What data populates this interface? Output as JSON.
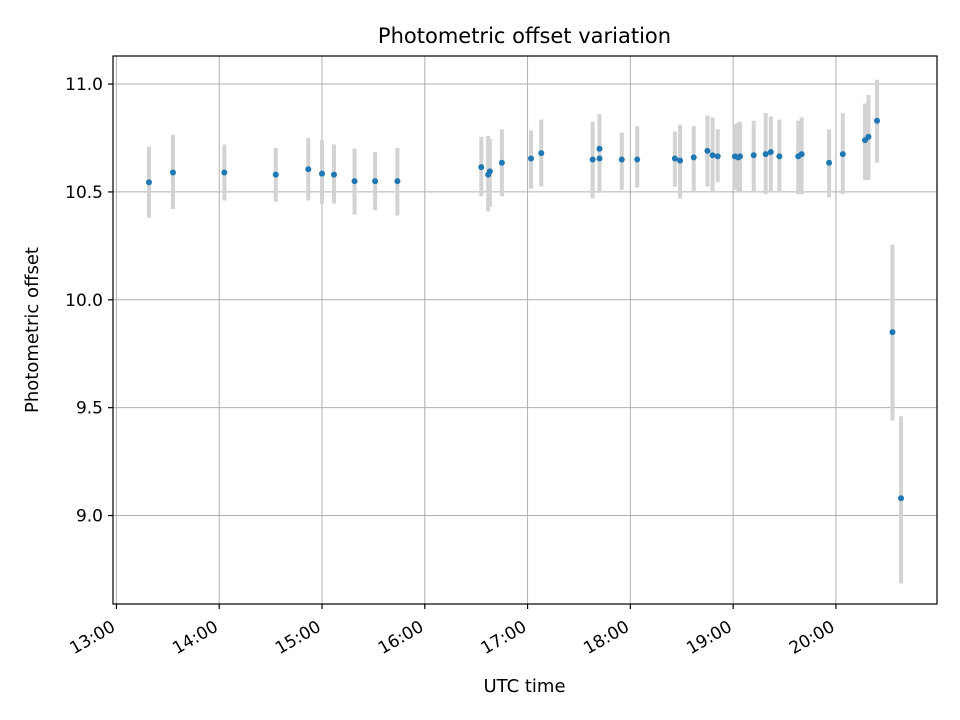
{
  "chart_data": {
    "type": "scatter",
    "title": "Photometric offset variation",
    "xlabel": "UTC time",
    "ylabel": "Photometric offset",
    "x_ticks": [
      "13:00",
      "14:00",
      "15:00",
      "16:00",
      "17:00",
      "18:00",
      "19:00",
      "20:00"
    ],
    "y_ticks": [
      "9.0",
      "9.5",
      "10.0",
      "10.5",
      "11.0"
    ],
    "xlim": [
      "12:58",
      "20:59"
    ],
    "ylim": [
      8.59,
      11.13
    ],
    "grid": true,
    "colors": {
      "point": "#1f77b4",
      "errorbar": "#d3d3d3",
      "grid": "#b0b0b0"
    },
    "points": [
      {
        "x": "13:19",
        "y": 10.545,
        "lo": 10.38,
        "hi": 10.71
      },
      {
        "x": "13:33",
        "y": 10.59,
        "lo": 10.42,
        "hi": 10.765
      },
      {
        "x": "14:03",
        "y": 10.59,
        "lo": 10.46,
        "hi": 10.72
      },
      {
        "x": "14:33",
        "y": 10.58,
        "lo": 10.455,
        "hi": 10.705
      },
      {
        "x": "14:52",
        "y": 10.605,
        "lo": 10.46,
        "hi": 10.75
      },
      {
        "x": "15:00",
        "y": 10.585,
        "lo": 10.445,
        "hi": 10.74
      },
      {
        "x": "15:07",
        "y": 10.58,
        "lo": 10.445,
        "hi": 10.72
      },
      {
        "x": "15:19",
        "y": 10.55,
        "lo": 10.395,
        "hi": 10.7
      },
      {
        "x": "15:31",
        "y": 10.55,
        "lo": 10.415,
        "hi": 10.685
      },
      {
        "x": "15:44",
        "y": 10.55,
        "lo": 10.39,
        "hi": 10.705
      },
      {
        "x": "16:33",
        "y": 10.615,
        "lo": 10.48,
        "hi": 10.755
      },
      {
        "x": "16:37",
        "y": 10.58,
        "lo": 10.41,
        "hi": 10.76
      },
      {
        "x": "16:38",
        "y": 10.595,
        "lo": 10.43,
        "hi": 10.745
      },
      {
        "x": "16:45",
        "y": 10.635,
        "lo": 10.48,
        "hi": 10.79
      },
      {
        "x": "17:02",
        "y": 10.655,
        "lo": 10.515,
        "hi": 10.785
      },
      {
        "x": "17:08",
        "y": 10.68,
        "lo": 10.525,
        "hi": 10.835
      },
      {
        "x": "17:38",
        "y": 10.65,
        "lo": 10.47,
        "hi": 10.825
      },
      {
        "x": "17:42",
        "y": 10.655,
        "lo": 10.495,
        "hi": 10.86
      },
      {
        "x": "17:42",
        "y": 10.7,
        "lo": 10.52,
        "hi": 10.86
      },
      {
        "x": "17:55",
        "y": 10.65,
        "lo": 10.51,
        "hi": 10.775
      },
      {
        "x": "18:04",
        "y": 10.65,
        "lo": 10.52,
        "hi": 10.805
      },
      {
        "x": "18:26",
        "y": 10.655,
        "lo": 10.525,
        "hi": 10.78
      },
      {
        "x": "18:29",
        "y": 10.645,
        "lo": 10.47,
        "hi": 10.81
      },
      {
        "x": "18:37",
        "y": 10.66,
        "lo": 10.505,
        "hi": 10.805
      },
      {
        "x": "18:45",
        "y": 10.69,
        "lo": 10.525,
        "hi": 10.855
      },
      {
        "x": "18:48",
        "y": 10.67,
        "lo": 10.5,
        "hi": 10.845
      },
      {
        "x": "18:51",
        "y": 10.665,
        "lo": 10.545,
        "hi": 10.79
      },
      {
        "x": "19:01",
        "y": 10.665,
        "lo": 10.51,
        "hi": 10.815
      },
      {
        "x": "19:03",
        "y": 10.66,
        "lo": 10.505,
        "hi": 10.82
      },
      {
        "x": "19:04",
        "y": 10.665,
        "lo": 10.5,
        "hi": 10.825
      },
      {
        "x": "19:12",
        "y": 10.67,
        "lo": 10.5,
        "hi": 10.83
      },
      {
        "x": "19:19",
        "y": 10.675,
        "lo": 10.49,
        "hi": 10.865
      },
      {
        "x": "19:22",
        "y": 10.685,
        "lo": 10.5,
        "hi": 10.85
      },
      {
        "x": "19:27",
        "y": 10.665,
        "lo": 10.5,
        "hi": 10.835
      },
      {
        "x": "19:38",
        "y": 10.665,
        "lo": 10.49,
        "hi": 10.83
      },
      {
        "x": "19:40",
        "y": 10.675,
        "lo": 10.49,
        "hi": 10.845
      },
      {
        "x": "19:56",
        "y": 10.635,
        "lo": 10.475,
        "hi": 10.79
      },
      {
        "x": "20:04",
        "y": 10.675,
        "lo": 10.49,
        "hi": 10.865
      },
      {
        "x": "20:17",
        "y": 10.74,
        "lo": 10.555,
        "hi": 10.91
      },
      {
        "x": "20:19",
        "y": 10.755,
        "lo": 10.555,
        "hi": 10.95
      },
      {
        "x": "20:24",
        "y": 10.83,
        "lo": 10.635,
        "hi": 11.02
      },
      {
        "x": "20:33",
        "y": 9.85,
        "lo": 9.44,
        "hi": 10.255
      },
      {
        "x": "20:38",
        "y": 9.08,
        "lo": 8.685,
        "hi": 9.46
      }
    ]
  }
}
